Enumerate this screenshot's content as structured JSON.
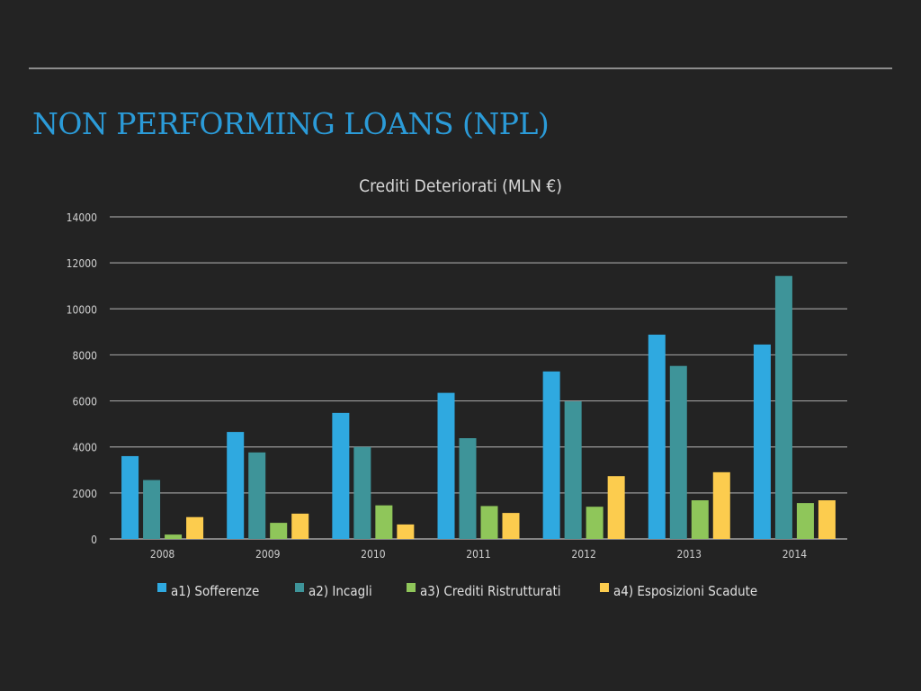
{
  "slide": {
    "title": "NON PERFORMING LOANS (NPL)"
  },
  "chart_data": {
    "type": "bar",
    "title": "Crediti Deteriorati (MLN €)",
    "categories": [
      "2008",
      "2009",
      "2010",
      "2011",
      "2012",
      "2013",
      "2014"
    ],
    "series": [
      {
        "name": "a1) Sofferenze",
        "color": "#2fa9e0",
        "values": [
          3600,
          4650,
          5480,
          6350,
          7280,
          8880,
          8450
        ]
      },
      {
        "name": "a2) Incagli",
        "color": "#3e9499",
        "values": [
          2560,
          3760,
          4000,
          4380,
          5980,
          7520,
          11430
        ]
      },
      {
        "name": "a3) Crediti Ristrutturati",
        "color": "#8fc65a",
        "values": [
          190,
          700,
          1460,
          1430,
          1400,
          1680,
          1560
        ]
      },
      {
        "name": "a4) Esposizioni Scadute",
        "color": "#fccc4e",
        "values": [
          950,
          1100,
          630,
          1130,
          2730,
          2900,
          1680
        ]
      }
    ],
    "ylim": [
      0,
      14000
    ],
    "yticks": [
      "0",
      "2000",
      "4000",
      "6000",
      "8000",
      "10000",
      "12000",
      "14000"
    ],
    "grid": true,
    "legend_position": "bottom",
    "xlabel": "",
    "ylabel": ""
  }
}
